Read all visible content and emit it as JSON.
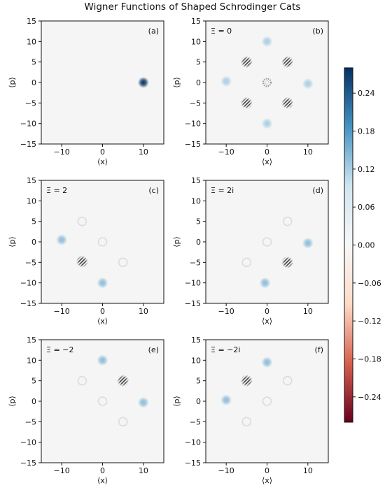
{
  "title": "Wigner Functions of Shaped Schrodinger Cats",
  "chart_data": [
    {
      "type": "heatmap",
      "panel": "(a)",
      "xi_label": "",
      "xlabel": "⟨x⟩",
      "ylabel": "⟨p⟩",
      "xlim": [
        -15,
        15
      ],
      "ylim": [
        -15,
        15
      ],
      "xticks": [
        -10,
        0,
        10
      ],
      "yticks": [
        -15,
        -10,
        -5,
        0,
        5,
        10,
        15
      ],
      "blobs": [
        {
          "x": 10,
          "y": 0,
          "value": 0.28,
          "kind": "gauss"
        }
      ]
    },
    {
      "type": "heatmap",
      "panel": "(b)",
      "xi_label": "Ξ = 0",
      "xlabel": "⟨x⟩",
      "ylabel": "⟨p⟩",
      "xlim": [
        -15,
        15
      ],
      "ylim": [
        -15,
        15
      ],
      "xticks": [
        -10,
        0,
        10
      ],
      "yticks": [
        -15,
        -10,
        -5,
        0,
        5,
        10,
        15
      ],
      "blobs": [
        {
          "x": 0,
          "y": 10,
          "value": 0.12,
          "kind": "gauss"
        },
        {
          "x": -10,
          "y": 0.3,
          "value": 0.12,
          "kind": "gauss"
        },
        {
          "x": 10,
          "y": -0.3,
          "value": 0.12,
          "kind": "gauss"
        },
        {
          "x": 0,
          "y": -10,
          "value": 0.12,
          "kind": "gauss"
        },
        {
          "x": -5,
          "y": 5,
          "value": 0.16,
          "kind": "fringe"
        },
        {
          "x": 5,
          "y": 5,
          "value": 0.16,
          "kind": "fringe"
        },
        {
          "x": -5,
          "y": -5,
          "value": 0.16,
          "kind": "fringe"
        },
        {
          "x": 5,
          "y": -5,
          "value": 0.16,
          "kind": "fringe"
        },
        {
          "x": 0,
          "y": 0,
          "value": 0.1,
          "kind": "ring"
        }
      ]
    },
    {
      "type": "heatmap",
      "panel": "(c)",
      "xi_label": "Ξ = 2",
      "xlabel": "⟨x⟩",
      "ylabel": "⟨p⟩",
      "xlim": [
        -15,
        15
      ],
      "ylim": [
        -15,
        15
      ],
      "xticks": [
        -10,
        0,
        10
      ],
      "yticks": [
        -15,
        -10,
        -5,
        0,
        5,
        10,
        15
      ],
      "blobs": [
        {
          "x": -10,
          "y": 0.5,
          "value": 0.14,
          "kind": "gauss"
        },
        {
          "x": 0,
          "y": -10,
          "value": 0.14,
          "kind": "gauss"
        },
        {
          "x": -5,
          "y": -4.8,
          "value": 0.18,
          "kind": "fringe"
        },
        {
          "x": -5,
          "y": 5,
          "value": 0.02,
          "kind": "faint"
        },
        {
          "x": 0,
          "y": 0,
          "value": 0.02,
          "kind": "faint"
        },
        {
          "x": 5,
          "y": -5,
          "value": 0.02,
          "kind": "faint"
        }
      ]
    },
    {
      "type": "heatmap",
      "panel": "(d)",
      "xi_label": "Ξ = 2i",
      "xlabel": "⟨x⟩",
      "ylabel": "⟨p⟩",
      "xlim": [
        -15,
        15
      ],
      "ylim": [
        -15,
        15
      ],
      "xticks": [
        -10,
        0,
        10
      ],
      "yticks": [
        -15,
        -10,
        -5,
        0,
        5,
        10,
        15
      ],
      "blobs": [
        {
          "x": 10,
          "y": -0.3,
          "value": 0.14,
          "kind": "gauss"
        },
        {
          "x": -0.5,
          "y": -10,
          "value": 0.14,
          "kind": "gauss"
        },
        {
          "x": 5,
          "y": -5,
          "value": 0.18,
          "kind": "fringe"
        },
        {
          "x": 5,
          "y": 5,
          "value": 0.02,
          "kind": "faint"
        },
        {
          "x": 0,
          "y": 0,
          "value": 0.02,
          "kind": "faint"
        },
        {
          "x": -5,
          "y": -5,
          "value": 0.02,
          "kind": "faint"
        }
      ]
    },
    {
      "type": "heatmap",
      "panel": "(e)",
      "xi_label": "Ξ = −2",
      "xlabel": "⟨x⟩",
      "ylabel": "⟨p⟩",
      "xlim": [
        -15,
        15
      ],
      "ylim": [
        -15,
        15
      ],
      "xticks": [
        -10,
        0,
        10
      ],
      "yticks": [
        -15,
        -10,
        -5,
        0,
        5,
        10,
        15
      ],
      "blobs": [
        {
          "x": 0,
          "y": 10,
          "value": 0.14,
          "kind": "gauss"
        },
        {
          "x": 10,
          "y": -0.3,
          "value": 0.14,
          "kind": "gauss"
        },
        {
          "x": 5,
          "y": 5,
          "value": 0.18,
          "kind": "fringe"
        },
        {
          "x": -5,
          "y": 5,
          "value": 0.02,
          "kind": "faint"
        },
        {
          "x": 0,
          "y": 0,
          "value": 0.02,
          "kind": "faint"
        },
        {
          "x": 5,
          "y": -5,
          "value": 0.02,
          "kind": "faint"
        }
      ]
    },
    {
      "type": "heatmap",
      "panel": "(f)",
      "xi_label": "Ξ = −2i",
      "xlabel": "⟨x⟩",
      "ylabel": "⟨p⟩",
      "xlim": [
        -15,
        15
      ],
      "ylim": [
        -15,
        15
      ],
      "xticks": [
        -10,
        0,
        10
      ],
      "yticks": [
        -15,
        -10,
        -5,
        0,
        5,
        10,
        15
      ],
      "blobs": [
        {
          "x": 0,
          "y": 9.5,
          "value": 0.14,
          "kind": "gauss"
        },
        {
          "x": -10,
          "y": 0.3,
          "value": 0.14,
          "kind": "gauss"
        },
        {
          "x": -5,
          "y": 5,
          "value": 0.18,
          "kind": "fringe"
        },
        {
          "x": 5,
          "y": 5,
          "value": 0.02,
          "kind": "faint"
        },
        {
          "x": 0,
          "y": 0,
          "value": 0.02,
          "kind": "faint"
        },
        {
          "x": -5,
          "y": -5,
          "value": 0.02,
          "kind": "faint"
        }
      ]
    }
  ],
  "colorbar": {
    "vmin": -0.28,
    "vmax": 0.28,
    "ticks": [
      0.24,
      0.18,
      0.12,
      0.06,
      0.0,
      -0.06,
      -0.12,
      -0.18,
      -0.24
    ],
    "tick_labels": [
      "0.24",
      "0.18",
      "0.12",
      "0.06",
      "0.00",
      "−0.06",
      "−0.12",
      "−0.18",
      "−0.24"
    ],
    "colormap": [
      "#67001f",
      "#d6604d",
      "#fddbc7",
      "#f7f7f7",
      "#d1e5f0",
      "#4393c3",
      "#053061"
    ]
  },
  "colors": {
    "background": "#f5f5f5",
    "fringe_dark": "#3a3a3a",
    "positive": "#1f6fb4"
  }
}
